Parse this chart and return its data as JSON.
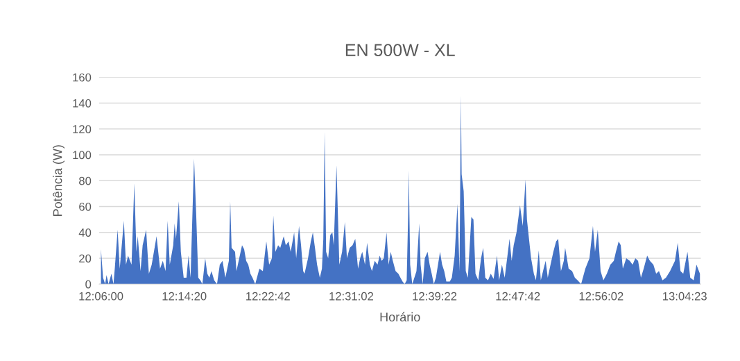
{
  "chart_data": {
    "type": "area",
    "title": "EN 500W - XL",
    "xlabel": "Horário",
    "ylabel": "Potência (W)",
    "xlim": [
      12.097,
      13.1
    ],
    "ylim": [
      0,
      160
    ],
    "yticks": [
      0,
      20,
      40,
      60,
      80,
      100,
      120,
      140,
      160
    ],
    "xticks": [
      {
        "value": 12.1,
        "label": "12:06:00"
      },
      {
        "value": 12.2389,
        "label": "12:14:20"
      },
      {
        "value": 12.3783,
        "label": "12:22:42"
      },
      {
        "value": 12.5172,
        "label": "12:31:02"
      },
      {
        "value": 12.6561,
        "label": "12:39:22"
      },
      {
        "value": 12.795,
        "label": "12:47:42"
      },
      {
        "value": 12.9339,
        "label": "12:56:02"
      },
      {
        "value": 13.0731,
        "label": "13:04:23"
      }
    ],
    "grid": "y",
    "series": [
      {
        "color": "#4472c4",
        "x": [
          12.1,
          12.1035,
          12.107,
          12.1093,
          12.1127,
          12.1174,
          12.1209,
          12.1232,
          12.1278,
          12.1313,
          12.1382,
          12.1417,
          12.1452,
          12.151,
          12.1556,
          12.1591,
          12.1614,
          12.166,
          12.1695,
          12.1753,
          12.1799,
          12.1846,
          12.1927,
          12.1985,
          12.2031,
          12.2077,
          12.2112,
          12.2147,
          12.2205,
          12.2228,
          12.2251,
          12.2298,
          12.2332,
          12.2379,
          12.2425,
          12.246,
          12.2494,
          12.2552,
          12.2587,
          12.2622,
          12.2657,
          12.2691,
          12.2738,
          12.2773,
          12.2807,
          12.2842,
          12.2888,
          12.2935,
          12.2981,
          12.3027,
          12.3074,
          12.3132,
          12.3155,
          12.3178,
          12.3236,
          12.3259,
          12.3305,
          12.3352,
          12.3387,
          12.3421,
          12.3456,
          12.3491,
          12.3526,
          12.3572,
          12.3641,
          12.3699,
          12.3757,
          12.3804,
          12.385,
          12.3873,
          12.3908,
          12.3954,
          12.3989,
          12.4047,
          12.4082,
          12.4128,
          12.4163,
          12.4221,
          12.4255,
          12.4302,
          12.4336,
          12.4371,
          12.4394,
          12.4452,
          12.4499,
          12.4533,
          12.4568,
          12.4603,
          12.4649,
          12.4684,
          12.4707,
          12.473,
          12.4754,
          12.4788,
          12.4823,
          12.4858,
          12.4881,
          12.4927,
          12.4974,
          12.502,
          12.5066,
          12.5101,
          12.5147,
          12.5194,
          12.524,
          12.5286,
          12.5321,
          12.5356,
          12.5402,
          12.5437,
          12.5483,
          12.5518,
          12.5564,
          12.5611,
          12.5646,
          12.568,
          12.5715,
          12.5761,
          12.5796,
          12.5831,
          12.5866,
          12.5912,
          12.5958,
          12.5993,
          12.6028,
          12.6063,
          12.6097,
          12.6121,
          12.6132,
          12.6155,
          12.619,
          12.6225,
          12.626,
          12.6306,
          12.6329,
          12.6364,
          12.6399,
          12.6445,
          12.648,
          12.6514,
          12.6549,
          12.6584,
          12.6619,
          12.6653,
          12.6688,
          12.6723,
          12.6758,
          12.6816,
          12.685,
          12.6897,
          12.6943,
          12.6978,
          12.7001,
          12.7013,
          12.7047,
          12.7082,
          12.7117,
          12.7175,
          12.721,
          12.7244,
          12.7291,
          12.7337,
          12.7372,
          12.7407,
          12.7453,
          12.7499,
          12.7546,
          12.7603,
          12.7638,
          12.7685,
          12.7731,
          12.7777,
          12.7812,
          12.7847,
          12.7881,
          12.7928,
          12.7986,
          12.8032,
          12.8078,
          12.8102,
          12.8136,
          12.8171,
          12.8217,
          12.8252,
          12.8299,
          12.8333,
          12.838,
          12.8414,
          12.8449,
          12.8495,
          12.8542,
          12.8588,
          12.8623,
          12.8669,
          12.8716,
          12.8739,
          12.8797,
          12.8855,
          12.8901,
          12.8947,
          12.9005,
          12.9075,
          12.9144,
          12.9202,
          12.9237,
          12.9283,
          12.933,
          12.9376,
          12.9434,
          12.9492,
          12.955,
          12.9585,
          12.9631,
          12.9666,
          12.97,
          12.9758,
          12.9816,
          12.9863,
          12.9909,
          12.9955,
          13.0002,
          13.0048,
          13.0106,
          13.0152,
          13.021,
          13.0256,
          13.0303,
          13.0361,
          13.0419,
          13.0488,
          13.0569,
          13.0616,
          13.0662,
          13.0708,
          13.0778,
          13.0824,
          13.0882,
          13.0928,
          13.0986
        ],
        "values": [
          27,
          5,
          0,
          7,
          0,
          8,
          0,
          13,
          42,
          12,
          49,
          15,
          22,
          15,
          78,
          25,
          37,
          10,
          30,
          42,
          8,
          15,
          37,
          12,
          18,
          10,
          49,
          15,
          30,
          47,
          35,
          64,
          25,
          5,
          5,
          22,
          5,
          97,
          55,
          5,
          3,
          0,
          20,
          8,
          5,
          10,
          3,
          0,
          15,
          18,
          5,
          18,
          64,
          28,
          25,
          10,
          20,
          30,
          27,
          18,
          15,
          8,
          5,
          0,
          12,
          10,
          33,
          15,
          20,
          53,
          25,
          30,
          28,
          37,
          30,
          33,
          25,
          40,
          20,
          45,
          30,
          10,
          8,
          20,
          33,
          40,
          28,
          15,
          5,
          12,
          35,
          118,
          25,
          20,
          38,
          40,
          30,
          92,
          15,
          25,
          48,
          20,
          28,
          30,
          35,
          12,
          20,
          25,
          15,
          32,
          15,
          10,
          18,
          15,
          22,
          18,
          20,
          40,
          15,
          25,
          18,
          10,
          8,
          5,
          2,
          0,
          3,
          53,
          88,
          15,
          0,
          5,
          10,
          47,
          15,
          0,
          20,
          25,
          15,
          8,
          0,
          5,
          15,
          25,
          15,
          10,
          2,
          2,
          5,
          22,
          62,
          10,
          146,
          85,
          72,
          10,
          5,
          52,
          50,
          8,
          3,
          20,
          28,
          5,
          3,
          8,
          4,
          22,
          3,
          15,
          5,
          22,
          35,
          18,
          30,
          40,
          61,
          45,
          81,
          50,
          35,
          20,
          8,
          3,
          26,
          3,
          12,
          18,
          5,
          15,
          25,
          33,
          35,
          10,
          18,
          28,
          12,
          10,
          5,
          3,
          0,
          12,
          20,
          45,
          25,
          42,
          10,
          3,
          8,
          15,
          18,
          25,
          33,
          30,
          12,
          20,
          18,
          15,
          20,
          18,
          5,
          12,
          22,
          18,
          15,
          8,
          10,
          3,
          5,
          10,
          18,
          32,
          10,
          8,
          25,
          5,
          3,
          15,
          8
        ]
      }
    ]
  }
}
